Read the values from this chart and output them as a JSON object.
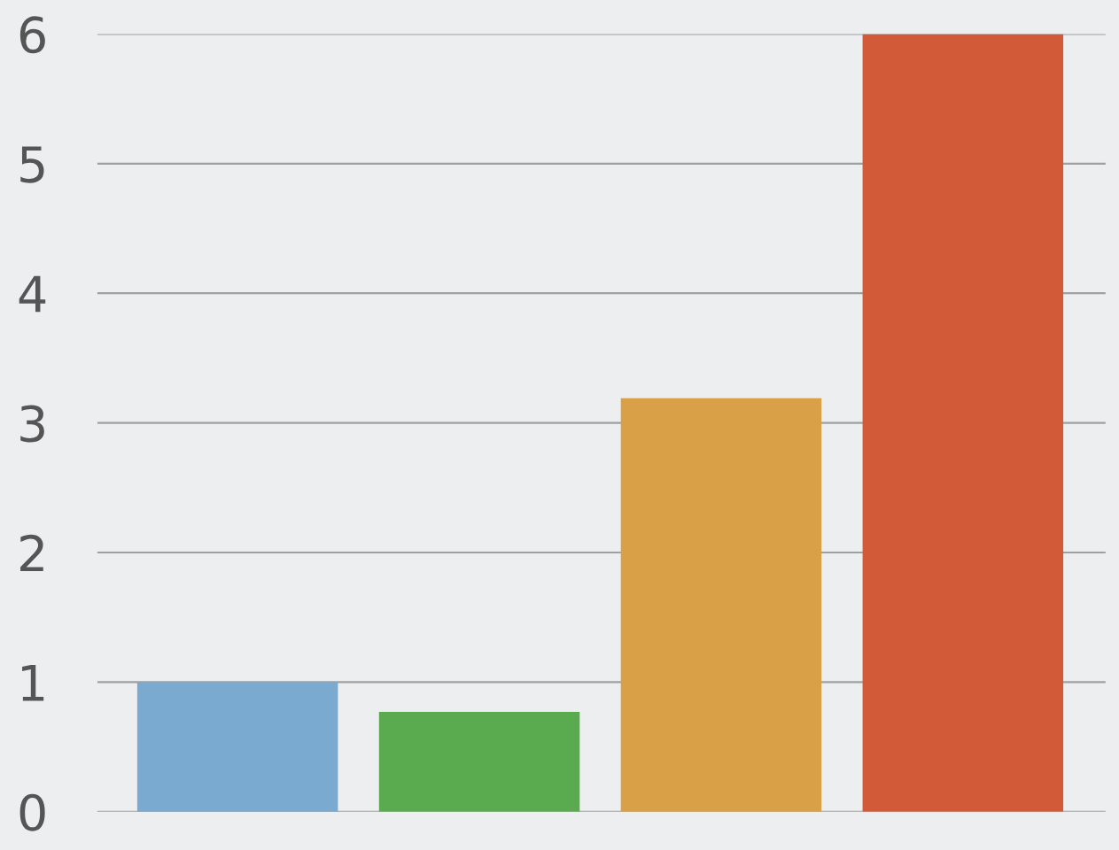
{
  "chart_data": {
    "type": "bar",
    "categories": [
      null,
      null,
      null,
      null
    ],
    "values": [
      1.0,
      0.77,
      3.19,
      6.0
    ],
    "colors": [
      "#7aaacf",
      "#5aaa50",
      "#d9a048",
      "#d35a38"
    ],
    "ylim": [
      0,
      6
    ],
    "yticks": [
      0,
      1,
      2,
      3,
      4,
      5,
      6
    ],
    "grid": "y",
    "tick_labels": "y"
  }
}
